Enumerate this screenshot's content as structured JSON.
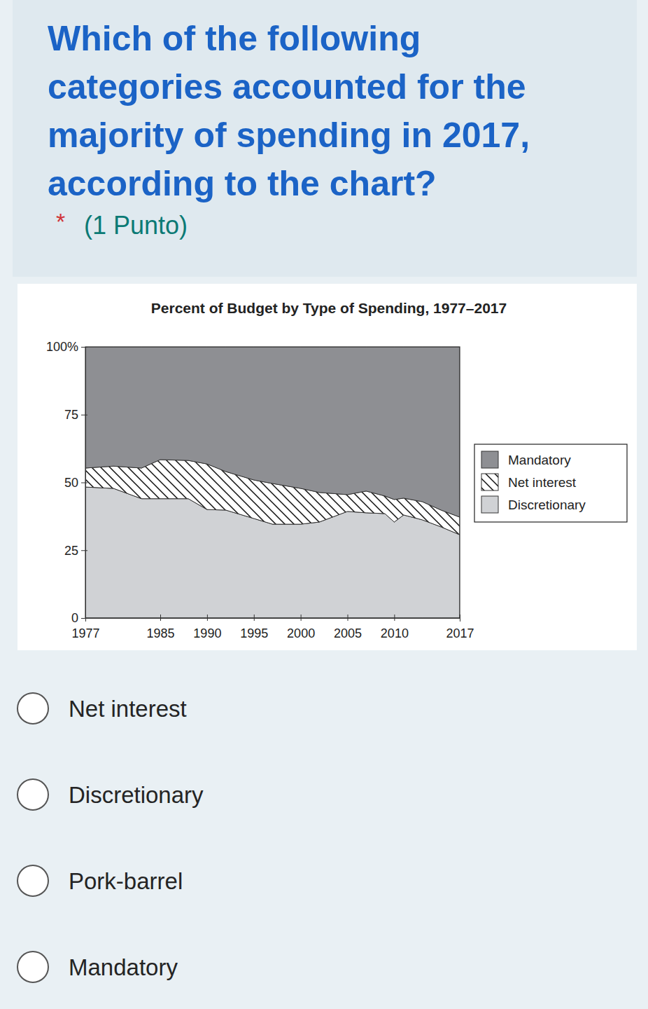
{
  "question": {
    "title": [
      "Which of the following",
      "categories accounted for the",
      "majority of spending in 2017,",
      "according to the chart?"
    ],
    "required": "*",
    "points": "(1 Punto)"
  },
  "options": [
    "Net interest",
    "Discretionary",
    "Pork-barrel",
    "Mandatory"
  ],
  "chart_data": {
    "type": "area",
    "title": "Percent of Budget by Type of Spending, 1977–2017",
    "stacked": true,
    "grid": false,
    "legend": "right",
    "x": [
      1977,
      1980,
      1983,
      1985,
      1988,
      1990,
      1992,
      1995,
      1997,
      2000,
      2002,
      2005,
      2007,
      2009,
      2010,
      2011,
      2013,
      2015,
      2017
    ],
    "xlim": [
      1977,
      2017
    ],
    "xticks": [
      1977,
      1985,
      1990,
      1995,
      2000,
      2005,
      2010,
      2017
    ],
    "ylim": [
      0,
      100
    ],
    "yticks": [
      0,
      25,
      50,
      75,
      {
        "value": 100,
        "label": "100%"
      }
    ],
    "series": [
      {
        "name": "Mandatory",
        "color": "#8e8f93",
        "values": [
          44.7,
          44,
          44.7,
          41.6,
          41.9,
          43.2,
          46,
          49.1,
          50.4,
          52.2,
          53.7,
          54.5,
          53.2,
          55,
          56.3,
          55.8,
          57.1,
          60.2,
          62.8
        ]
      },
      {
        "name": "Net interest",
        "color": "#ffffff",
        "values": [
          7,
          8.2,
          11.3,
          14.4,
          14.1,
          16.8,
          14.2,
          14.2,
          15,
          13.2,
          10.9,
          6.2,
          8,
          6.5,
          8.3,
          6.2,
          6.7,
          6.2,
          6.5
        ]
      },
      {
        "name": "Discretionary",
        "color": "#d0d2d5",
        "values": [
          48.3,
          47.8,
          44,
          44,
          44,
          40,
          39.8,
          36.7,
          34.6,
          34.6,
          35.4,
          39.3,
          38.8,
          38.5,
          35.4,
          38,
          36.2,
          33.6,
          30.7
        ]
      }
    ]
  }
}
